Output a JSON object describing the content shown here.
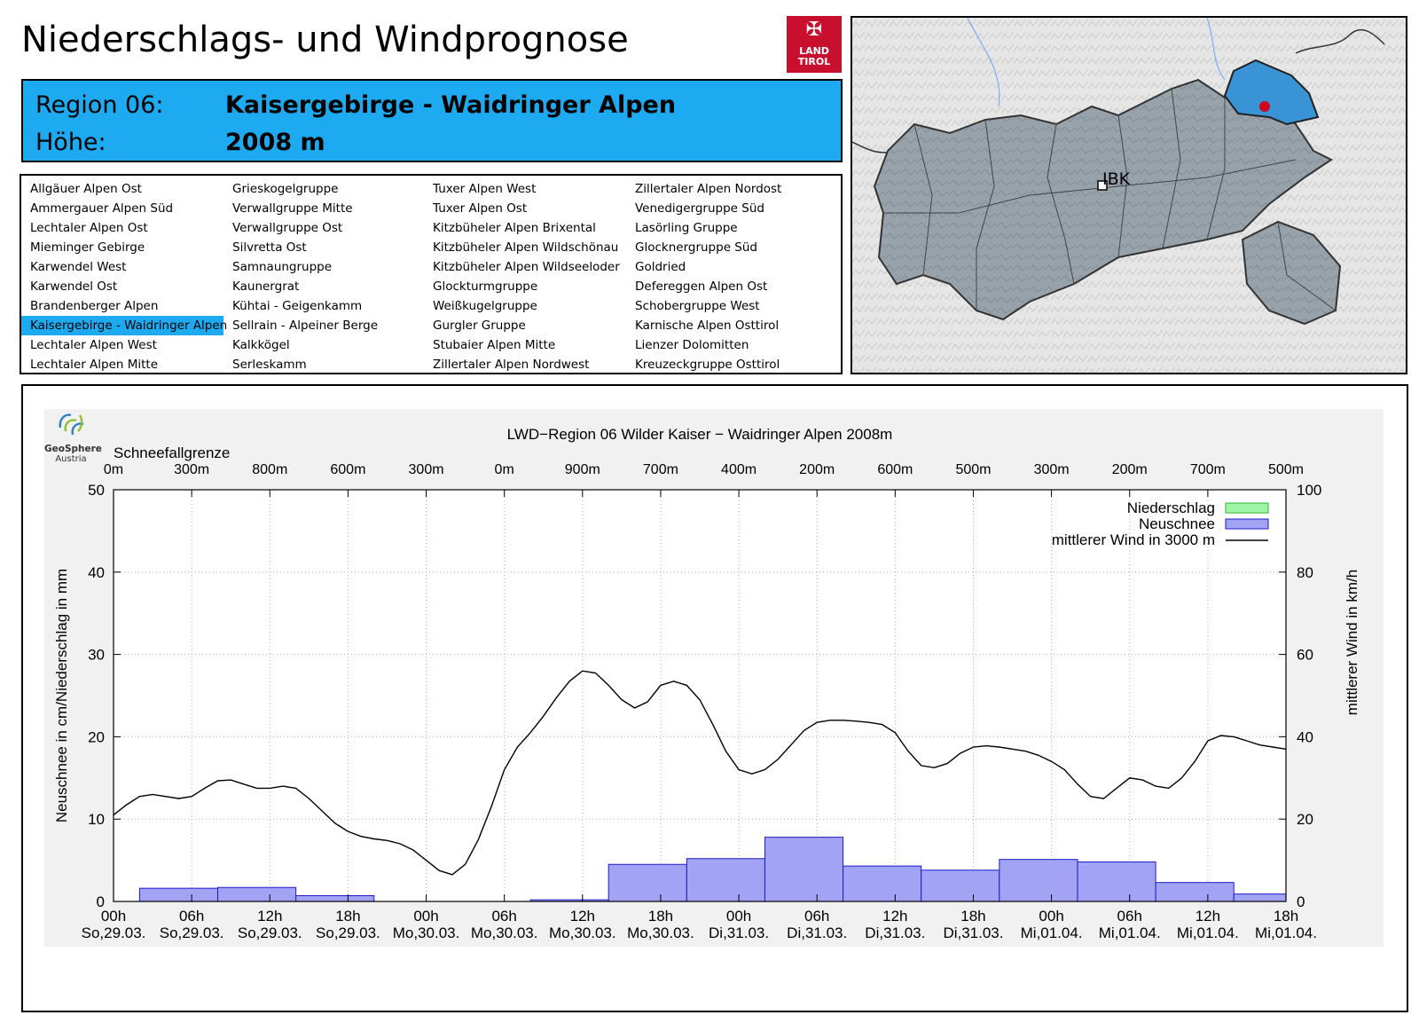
{
  "header": {
    "title": "Niederschlags- und Windprognose",
    "region_label": "Region 06:",
    "region_value": "Kaisergebirge - Waidringer Alpen",
    "height_label": "Höhe:",
    "height_value": "2008 m"
  },
  "logo": {
    "line1": "LAND",
    "line2": "TIROL"
  },
  "regions": [
    [
      "Allgäuer Alpen Ost",
      "Ammergauer Alpen Süd",
      "Lechtaler Alpen Ost",
      "Mieminger Gebirge",
      "Karwendel West",
      "Karwendel Ost",
      "Brandenberger Alpen",
      "Kaisergebirge - Waidringer Alpen",
      "Lechtaler Alpen West",
      "Lechtaler Alpen Mitte"
    ],
    [
      "Grieskogelgruppe",
      "Verwallgruppe Mitte",
      "Verwallgruppe Ost",
      "Silvretta Ost",
      "Samnaungruppe",
      "Kaunergrat",
      "Kühtai - Geigenkamm",
      "Sellrain - Alpeiner Berge",
      "Kalkkögel",
      "Serleskamm"
    ],
    [
      "Tuxer Alpen West",
      "Tuxer Alpen Ost",
      "Kitzbüheler Alpen Brixental",
      "Kitzbüheler Alpen Wildschönau",
      "Kitzbüheler Alpen Wildseeloder",
      "Glockturmgruppe",
      "Weißkugelgruppe",
      "Gurgler Gruppe",
      "Stubaier Alpen Mitte",
      "Zillertaler Alpen Nordwest"
    ],
    [
      "Zillertaler Alpen Nordost",
      "Venedigergruppe Süd",
      "Lasörling Gruppe",
      "Glocknergruppe Süd",
      "Goldried",
      "Defereggen Alpen Ost",
      "Schobergruppe West",
      "Karnische Alpen Osttirol",
      "Lienzer Dolomitten",
      "Kreuzeckgruppe Osttirol"
    ]
  ],
  "active_region": "Kaisergebirge - Waidringer Alpen",
  "map": {
    "city_label": "IBK",
    "region_color": "#3a93d4",
    "marker_color": "#d0021b"
  },
  "geosphere": {
    "name": "GeoSphere",
    "sub": "Austria"
  },
  "chart_data": {
    "type": "bar+line",
    "title": "LWD−Region 06 Wilder Kaiser − Waidringer Alpen 2008m",
    "snowline_label": "Schneefallgrenze",
    "snowline": [
      "0m",
      "300m",
      "800m",
      "600m",
      "300m",
      "0m",
      "900m",
      "700m",
      "400m",
      "200m",
      "600m",
      "500m",
      "300m",
      "200m",
      "700m",
      "500m"
    ],
    "ylabel_left": "Neuschnee in cm/Niederschlag in mm",
    "ylabel_right": "mittlerer Wind in km/h",
    "ylim_left": [
      0,
      50
    ],
    "ylim_right": [
      0,
      100
    ],
    "yticks_left": [
      "0",
      "10",
      "20",
      "30",
      "40",
      "50"
    ],
    "yticks_right": [
      "0",
      "20",
      "40",
      "60",
      "80",
      "100"
    ],
    "x_hours": [
      0,
      90
    ],
    "xticks": [
      {
        "h": 0,
        "time": "00h",
        "date": "So,29.03."
      },
      {
        "h": 6,
        "time": "06h",
        "date": "So,29.03."
      },
      {
        "h": 12,
        "time": "12h",
        "date": "So,29.03."
      },
      {
        "h": 18,
        "time": "18h",
        "date": "So,29.03."
      },
      {
        "h": 24,
        "time": "00h",
        "date": "Mo,30.03."
      },
      {
        "h": 30,
        "time": "06h",
        "date": "Mo,30.03."
      },
      {
        "h": 36,
        "time": "12h",
        "date": "Mo,30.03."
      },
      {
        "h": 42,
        "time": "18h",
        "date": "Mo,30.03."
      },
      {
        "h": 48,
        "time": "00h",
        "date": "Di,31.03."
      },
      {
        "h": 54,
        "time": "06h",
        "date": "Di,31.03."
      },
      {
        "h": 60,
        "time": "12h",
        "date": "Di,31.03."
      },
      {
        "h": 66,
        "time": "18h",
        "date": "Di,31.03."
      },
      {
        "h": 72,
        "time": "00h",
        "date": "Mi,01.04."
      },
      {
        "h": 78,
        "time": "06h",
        "date": "Mi,01.04."
      },
      {
        "h": 84,
        "time": "12h",
        "date": "Mi,01.04."
      },
      {
        "h": 90,
        "time": "18h",
        "date": "Mi,01.04."
      }
    ],
    "legend": [
      {
        "name": "Niederschlag",
        "color": "#9ff5a6",
        "kind": "bar"
      },
      {
        "name": "Neuschnee",
        "color": "#a3a3f5",
        "kind": "bar"
      },
      {
        "name": "mittlerer Wind in 3000 m",
        "color": "#000000",
        "kind": "line"
      }
    ],
    "legend_position": "top-right",
    "neuschnee": [
      {
        "from": 2,
        "to": 8,
        "value": 1.6
      },
      {
        "from": 8,
        "to": 14,
        "value": 1.7
      },
      {
        "from": 14,
        "to": 20,
        "value": 0.7
      },
      {
        "from": 20,
        "to": 26,
        "value": 0
      },
      {
        "from": 26,
        "to": 32,
        "value": 0
      },
      {
        "from": 32,
        "to": 38,
        "value": 0.2
      },
      {
        "from": 38,
        "to": 44,
        "value": 4.5
      },
      {
        "from": 44,
        "to": 50,
        "value": 5.2
      },
      {
        "from": 50,
        "to": 56,
        "value": 7.8
      },
      {
        "from": 56,
        "to": 62,
        "value": 4.3
      },
      {
        "from": 62,
        "to": 68,
        "value": 3.8
      },
      {
        "from": 68,
        "to": 74,
        "value": 5.1
      },
      {
        "from": 74,
        "to": 80,
        "value": 4.8
      },
      {
        "from": 80,
        "to": 86,
        "value": 2.3
      },
      {
        "from": 86,
        "to": 90,
        "value": 0.9
      }
    ],
    "wind": [
      [
        0,
        21
      ],
      [
        1,
        23.5
      ],
      [
        2,
        25.5
      ],
      [
        3,
        26
      ],
      [
        4,
        25.5
      ],
      [
        5,
        25
      ],
      [
        6,
        25.5
      ],
      [
        7,
        27.5
      ],
      [
        8,
        29.3
      ],
      [
        9,
        29.5
      ],
      [
        10,
        28.5
      ],
      [
        11,
        27.5
      ],
      [
        12,
        27.5
      ],
      [
        13,
        28
      ],
      [
        14,
        27.5
      ],
      [
        15,
        25
      ],
      [
        16,
        22
      ],
      [
        17,
        19
      ],
      [
        18,
        17
      ],
      [
        19,
        15.8
      ],
      [
        20,
        15.2
      ],
      [
        21,
        14.8
      ],
      [
        22,
        14
      ],
      [
        23,
        12.5
      ],
      [
        24,
        10
      ],
      [
        25,
        7.5
      ],
      [
        26,
        6.5
      ],
      [
        27,
        9
      ],
      [
        28,
        15
      ],
      [
        29,
        23
      ],
      [
        30,
        32
      ],
      [
        31,
        37.5
      ],
      [
        32,
        41
      ],
      [
        33,
        45
      ],
      [
        34,
        49.5
      ],
      [
        35,
        53.5
      ],
      [
        36,
        56
      ],
      [
        37,
        55.5
      ],
      [
        38,
        52.5
      ],
      [
        39,
        49
      ],
      [
        40,
        47
      ],
      [
        41,
        48.5
      ],
      [
        42,
        52.5
      ],
      [
        43,
        53.5
      ],
      [
        44,
        52.5
      ],
      [
        45,
        49
      ],
      [
        46,
        43
      ],
      [
        47,
        36.5
      ],
      [
        48,
        32
      ],
      [
        49,
        31
      ],
      [
        50,
        32
      ],
      [
        51,
        34.5
      ],
      [
        52,
        38
      ],
      [
        53,
        41.5
      ],
      [
        54,
        43.5
      ],
      [
        55,
        44
      ],
      [
        56,
        44
      ],
      [
        57,
        43.8
      ],
      [
        58,
        43.5
      ],
      [
        59,
        43
      ],
      [
        60,
        41
      ],
      [
        61,
        36.5
      ],
      [
        62,
        33
      ],
      [
        63,
        32.5
      ],
      [
        64,
        33.5
      ],
      [
        65,
        36
      ],
      [
        66,
        37.5
      ],
      [
        67,
        37.8
      ],
      [
        68,
        37.5
      ],
      [
        69,
        37
      ],
      [
        70,
        36.5
      ],
      [
        71,
        35.5
      ],
      [
        72,
        34
      ],
      [
        73,
        32
      ],
      [
        74,
        28.5
      ],
      [
        75,
        25.5
      ],
      [
        76,
        25
      ],
      [
        77,
        27.5
      ],
      [
        78,
        30
      ],
      [
        79,
        29.5
      ],
      [
        80,
        28
      ],
      [
        81,
        27.5
      ],
      [
        82,
        30
      ],
      [
        83,
        34
      ],
      [
        84,
        39
      ],
      [
        85,
        40.3
      ],
      [
        86,
        40
      ],
      [
        87,
        39
      ],
      [
        88,
        38
      ],
      [
        89,
        37.5
      ],
      [
        90,
        37
      ]
    ]
  }
}
